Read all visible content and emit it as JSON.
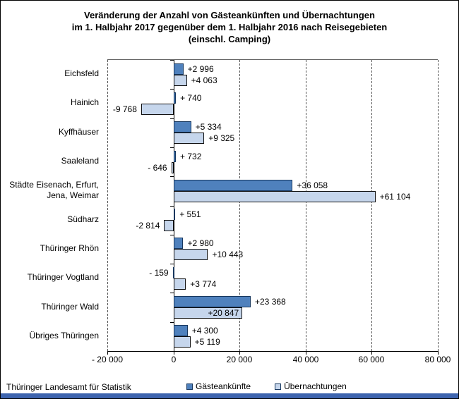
{
  "title": "Veränderung der Anzahl von Gästeankünften und Übernachtungen\nim 1. Halbjahr 2017 gegenüber dem 1. Halbjahr 2016 nach Reisegebieten\n(einschl. Camping)",
  "footer": {
    "source": "Thüringer Landesamt für Statistik"
  },
  "colors": {
    "series_dark": "#4f81bd",
    "series_dark_border": "#17375e",
    "series_light": "#c6d6ec",
    "series_light_border": "#111111",
    "bottom_strip": "#3d64ae"
  },
  "chart_data": {
    "type": "bar",
    "orientation": "horizontal",
    "title": "Veränderung der Anzahl von Gästeankünften und Übernachtungen im 1. Halbjahr 2017 gegenüber dem 1. Halbjahr 2016 nach Reisegebieten (einschl. Camping)",
    "categories": [
      "Eichsfeld",
      "Hainich",
      "Kyffhäuser",
      "Saaleland",
      "Städte Eisenach, Erfurt,\nJena, Weimar",
      "Südharz",
      "Thüringer Rhön",
      "Thüringer Vogtland",
      "Thüringer Wald",
      "Übriges Thüringen"
    ],
    "series": [
      {
        "name": "Gästeankünfte",
        "color": "#4f81bd",
        "border": "#17375e",
        "values": [
          2996,
          740,
          5334,
          732,
          36058,
          551,
          2980,
          -159,
          23368,
          4300
        ],
        "labels": [
          "+2 996",
          "+ 740",
          "+5 334",
          "+ 732",
          "+36 058",
          "+ 551",
          "+2 980",
          "- 159",
          "+23 368",
          "+4 300"
        ],
        "inside_indices": []
      },
      {
        "name": "Übernachtungen",
        "color": "#c6d6ec",
        "border": "#111111",
        "values": [
          4063,
          -9768,
          9325,
          -646,
          61104,
          -2814,
          10443,
          3774,
          20847,
          5119
        ],
        "labels": [
          "+4 063",
          "-9 768",
          "+9 325",
          "- 646",
          "+61 104",
          "-2 814",
          "+10 443",
          "+3 774",
          "+20 847",
          "+5 119"
        ],
        "inside_indices": [
          8
        ]
      }
    ],
    "xlim": [
      -20000,
      80000
    ],
    "x_ticks": [
      -20000,
      0,
      20000,
      40000,
      60000,
      80000
    ],
    "x_tick_labels": [
      "- 20 000",
      "0",
      "20 000",
      "40 000",
      "60 000",
      "80 000"
    ],
    "grid": "vertical-dashed",
    "legend_position": "bottom-center"
  }
}
